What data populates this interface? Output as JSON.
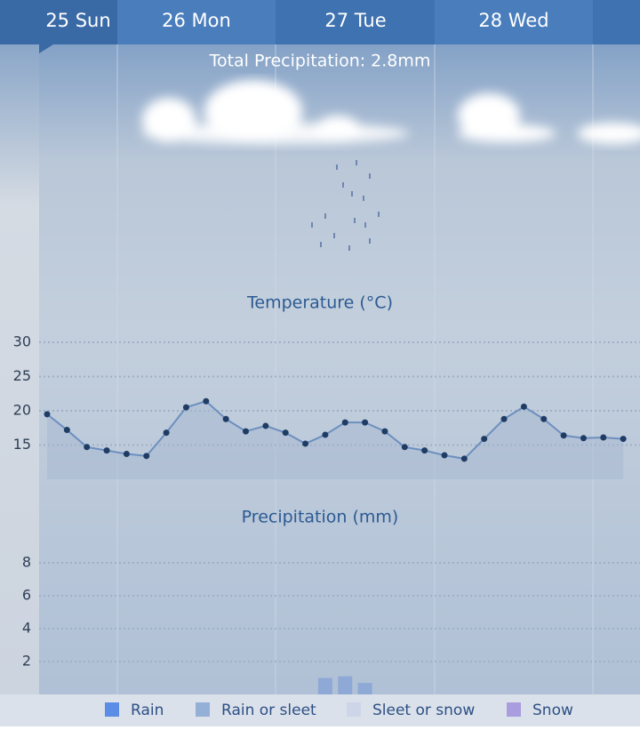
{
  "tabs": [
    "25 Sun",
    "26 Mon",
    "27 Tue",
    "28 Wed"
  ],
  "total_precipitation": "Total Precipitation: 2.8mm",
  "chart_data": [
    {
      "type": "line",
      "title": "Temperature (°C)",
      "color": "#6d8fbf",
      "values": [
        19.5,
        17.2,
        14.7,
        14.2,
        13.7,
        13.4,
        16.8,
        20.5,
        21.4,
        18.8,
        17.0,
        17.8,
        16.8,
        15.2,
        16.5,
        18.3,
        18.3,
        17.0,
        14.7,
        14.2,
        13.5,
        13.0,
        15.9,
        18.8,
        20.6,
        18.8,
        16.4,
        16.0,
        16.1,
        15.9
      ],
      "ylim": [
        10,
        30
      ],
      "yticks": [
        15,
        20,
        25,
        30
      ],
      "grid": true
    },
    {
      "type": "bar",
      "title": "Precipitation (mm)",
      "color": "#8fa9d6",
      "values": [
        0,
        0,
        0,
        0,
        0,
        0,
        0,
        0,
        0,
        0,
        0,
        0,
        0,
        0,
        1.0,
        1.1,
        0.7,
        0,
        0,
        0,
        0,
        0,
        0,
        0,
        0,
        0,
        0,
        0,
        0,
        0
      ],
      "ylim": [
        0,
        8
      ],
      "yticks": [
        2,
        4,
        6,
        8
      ],
      "grid": true,
      "legend": [
        {
          "name": "Rain",
          "color": "#5b8de6"
        },
        {
          "name": "Rain or sleet",
          "color": "#94b0d6"
        },
        {
          "name": "Sleet or snow",
          "color": "#cdd5e8"
        },
        {
          "name": "Snow",
          "color": "#a99ddf"
        }
      ]
    }
  ]
}
